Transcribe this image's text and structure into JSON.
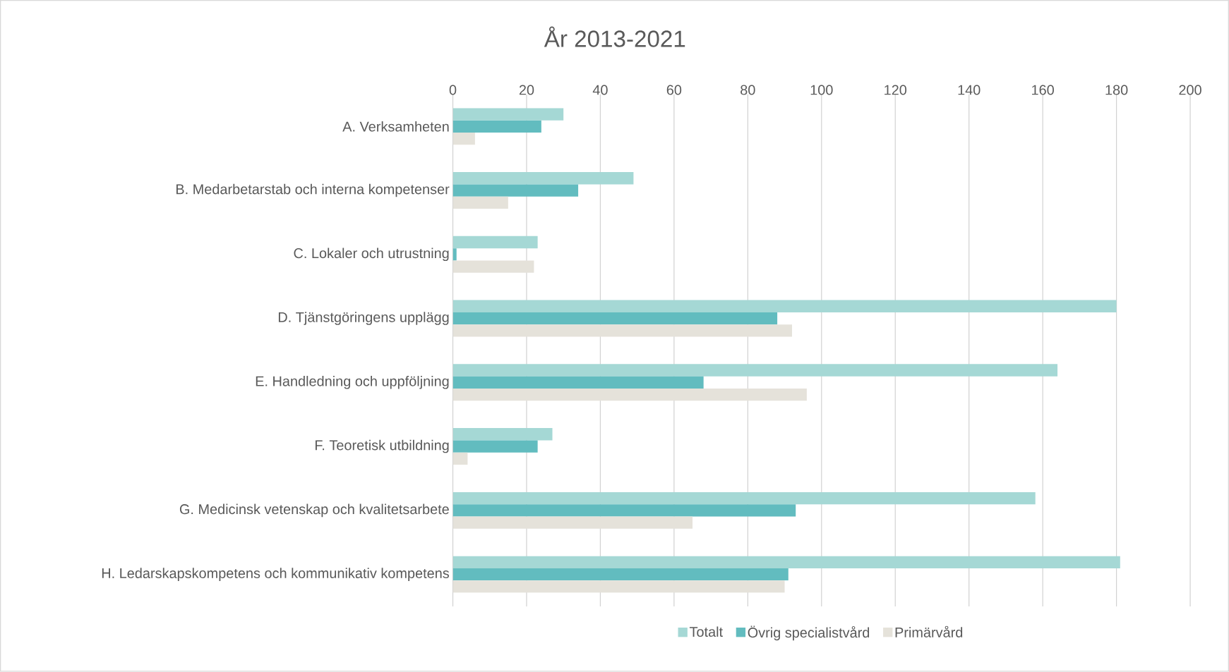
{
  "chart_data": {
    "type": "bar",
    "orientation": "horizontal",
    "title": "År 2013-2021",
    "categories": [
      "A. Verksamheten",
      "B. Medarbetarstab och interna kompetenser",
      "C. Lokaler och utrustning",
      "D. Tjänstgöringens upplägg",
      "E. Handledning och uppföljning",
      "F. Teoretisk utbildning",
      "G. Medicinsk vetenskap och kvalitetsarbete",
      "H. Ledarskapskompetens och kommunikativ kompetens"
    ],
    "series": [
      {
        "name": "Totalt",
        "color": "#a5d8d5",
        "values": [
          30,
          49,
          23,
          180,
          164,
          27,
          158,
          181
        ]
      },
      {
        "name": "Övrig specialistvård",
        "color": "#62bcbf",
        "values": [
          24,
          34,
          1,
          88,
          68,
          23,
          93,
          91
        ]
      },
      {
        "name": "Primärvård",
        "color": "#e5e2da",
        "values": [
          6,
          15,
          22,
          92,
          96,
          4,
          65,
          90
        ]
      }
    ],
    "xlim": [
      0,
      200
    ],
    "xticks": [
      0,
      20,
      40,
      60,
      80,
      100,
      120,
      140,
      160,
      180,
      200
    ],
    "grid": "x",
    "legend": "bottom"
  }
}
